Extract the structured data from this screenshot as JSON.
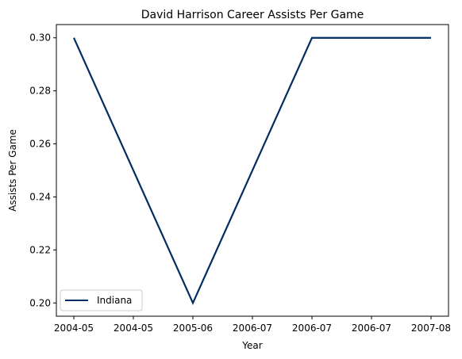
{
  "chart_data": {
    "type": "line",
    "title": "David Harrison  Career Assists Per Game",
    "xlabel": "Year",
    "ylabel": "Assists Per Game",
    "x_tick_labels": [
      "2004-05",
      "2004-05",
      "2005-06",
      "2006-07",
      "2006-07",
      "2006-07",
      "2007-08"
    ],
    "y_ticks": [
      0.2,
      0.22,
      0.24,
      0.26,
      0.28,
      0.3
    ],
    "y_tick_labels": [
      "0.20",
      "0.22",
      "0.24",
      "0.26",
      "0.28",
      "0.30"
    ],
    "ylim": [
      0.195,
      0.305
    ],
    "grid": false,
    "legend_position": "lower-left",
    "series": [
      {
        "name": "Indiana",
        "color": "#002D62",
        "points": [
          {
            "x": "2004-05",
            "y": 0.3
          },
          {
            "x": "2005-06",
            "y": 0.2
          },
          {
            "x": "2006-07",
            "y": 0.3
          },
          {
            "x": "2007-08",
            "y": 0.3
          }
        ]
      }
    ]
  }
}
